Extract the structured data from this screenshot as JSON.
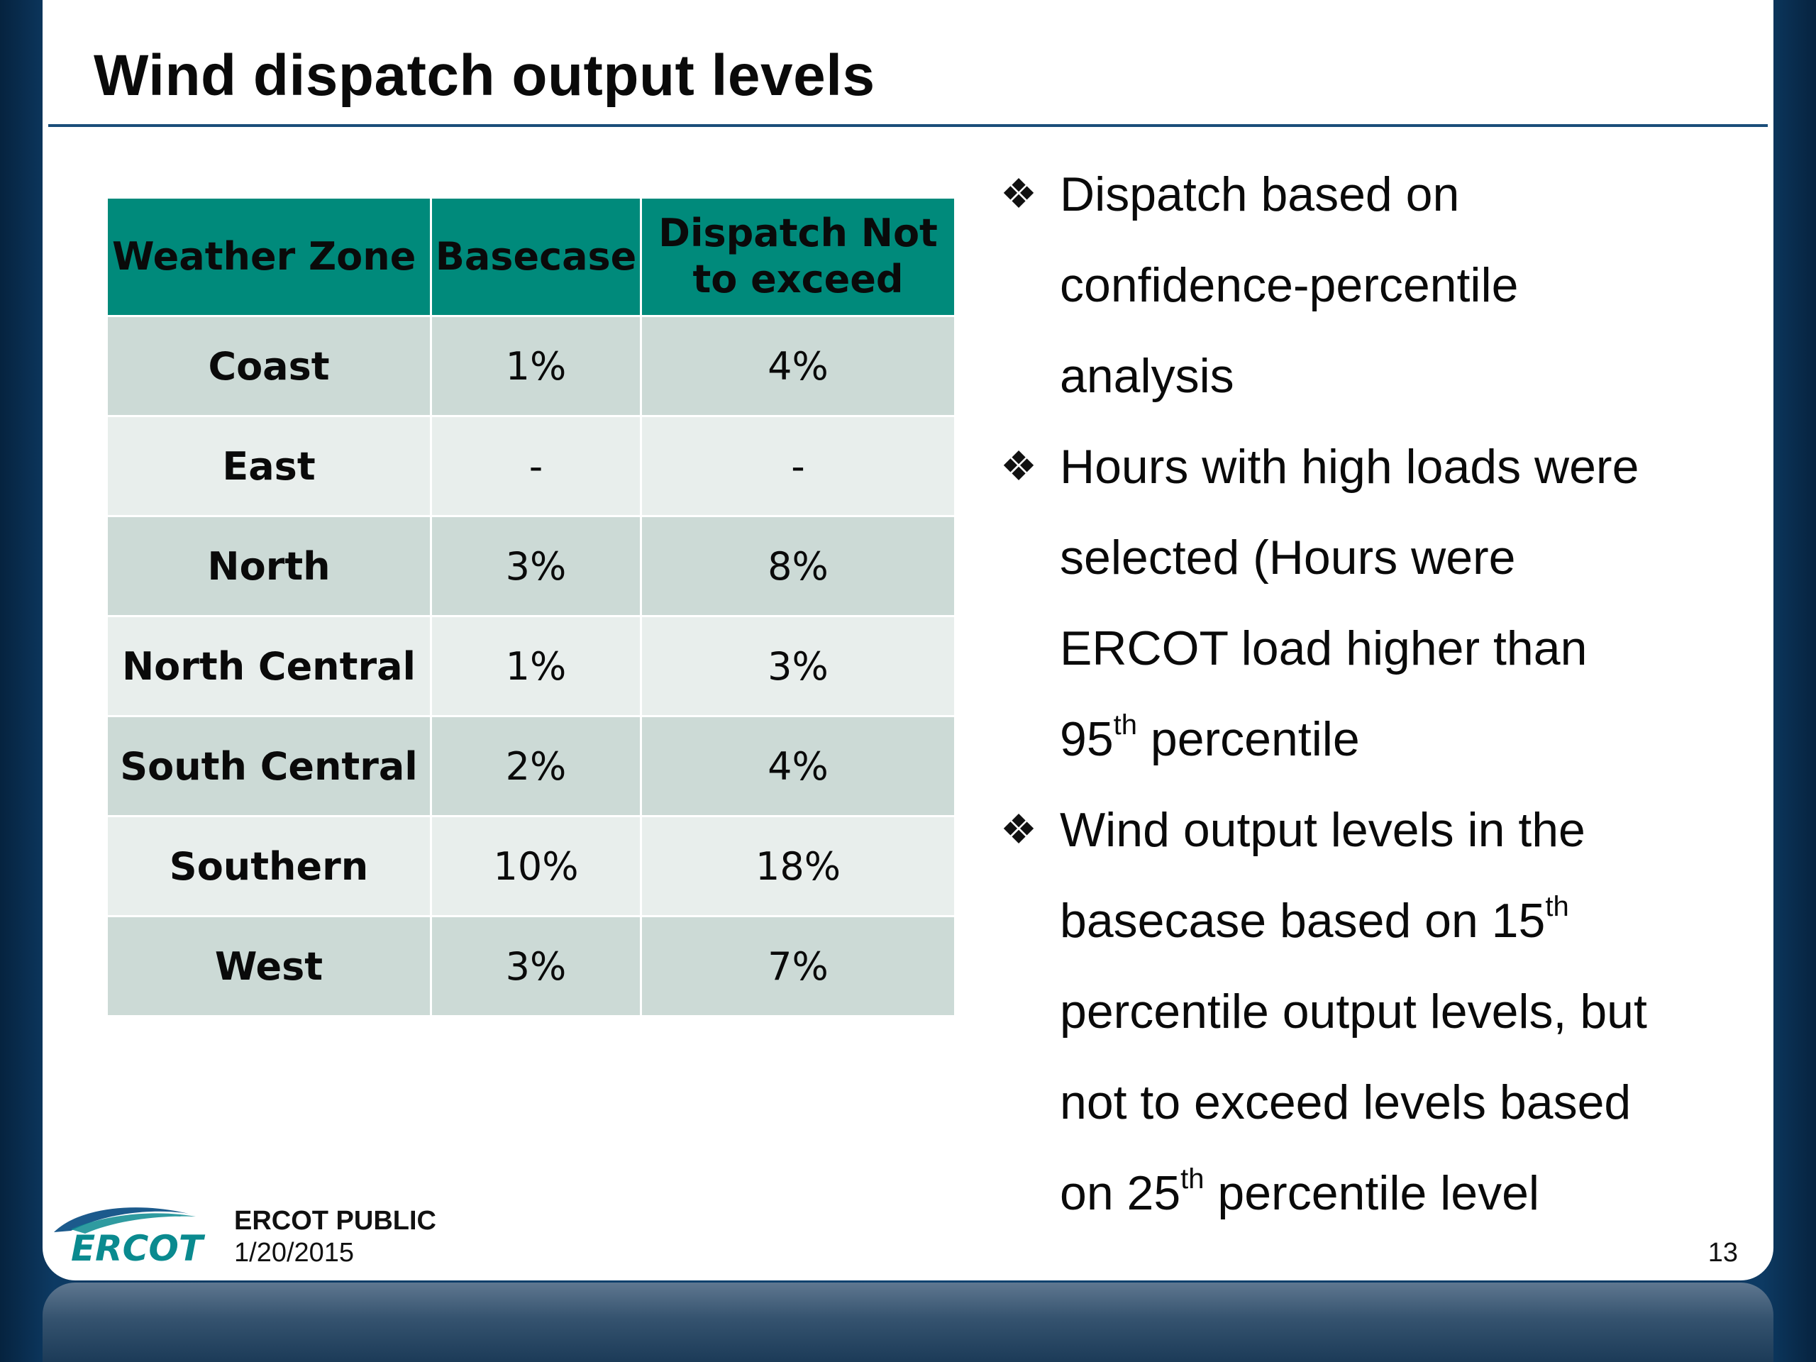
{
  "title": "Wind dispatch output levels",
  "table": {
    "headers": {
      "zone": "Weather Zone",
      "basecase": "Basecase",
      "dispatch_line1": "Dispatch Not",
      "dispatch_line2": "to exceed"
    },
    "rows": [
      {
        "zone": "Coast",
        "basecase": "1%",
        "dispatch": "4%"
      },
      {
        "zone": "East",
        "basecase": "-",
        "dispatch": "-"
      },
      {
        "zone": "North",
        "basecase": "3%",
        "dispatch": "8%"
      },
      {
        "zone": "North Central",
        "basecase": "1%",
        "dispatch": "3%"
      },
      {
        "zone": "South Central",
        "basecase": "2%",
        "dispatch": "4%"
      },
      {
        "zone": "Southern",
        "basecase": "10%",
        "dispatch": "18%"
      },
      {
        "zone": "West",
        "basecase": "3%",
        "dispatch": "7%"
      }
    ]
  },
  "bullets": {
    "icon": "four-diamond-bullet-icon",
    "b1": {
      "line1": "Dispatch based on",
      "line2": "confidence-percentile",
      "line3": "analysis"
    },
    "b2": {
      "line1": "Hours with high loads were",
      "line2": "selected (Hours were",
      "line3": "ERCOT load  higher than",
      "line4_num": "95",
      "line4_sup": "th",
      "line4_rest": " percentile"
    },
    "b3": {
      "line1": "Wind output levels in the",
      "line2_text": "basecase based on 15",
      "line2_sup": "th",
      "line3": "percentile output levels, but",
      "line4": "not to exceed levels based",
      "line5_text": "on 25",
      "line5_sup": "th",
      "line5_rest": " percentile level"
    }
  },
  "footer": {
    "logo_text": "ERCOT",
    "label": "ERCOT PUBLIC",
    "date": "1/20/2015",
    "page_number": "13"
  },
  "colors": {
    "header_teal": "#008a7b",
    "row_odd": "#ccdad6",
    "row_even": "#e8eeec",
    "frame_navy": "#0d3a63",
    "logo_teal": "#0a8a8f"
  }
}
